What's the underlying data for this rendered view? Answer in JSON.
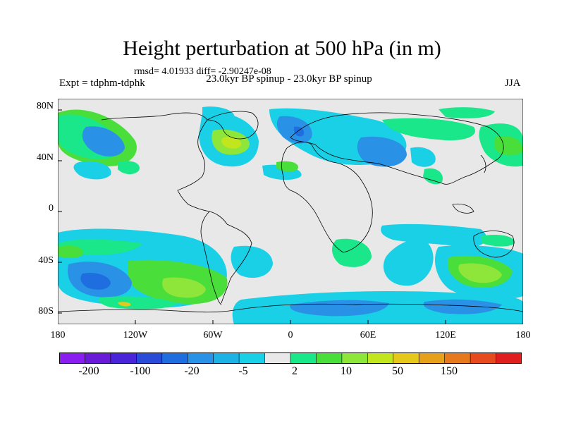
{
  "title": "Height perturbation at 500 hPa (in m)",
  "stats": "rmsd= 4.01933 diff= -2.90247e-08",
  "experiment": "Expt = tdphm-tdphk",
  "subtitle": "23.0kyr BP spinup - 23.0kyr BP spinup",
  "season": "JJA",
  "lat_labels": [
    "80N",
    "40N",
    "0",
    "40S",
    "80S"
  ],
  "lon_labels": [
    "180",
    "120W",
    "60W",
    "0",
    "60E",
    "120E",
    "180"
  ],
  "colorbar": {
    "colors": [
      "#8a1ef0",
      "#6a1bd8",
      "#4a24d8",
      "#2a4ad8",
      "#1e6ee0",
      "#2a92e6",
      "#1cb2e6",
      "#1ad0e6",
      "#e8e8e8",
      "#1ae68a",
      "#4ade3a",
      "#8ee63a",
      "#c2e61e",
      "#e6c81a",
      "#e6a01a",
      "#e6781e",
      "#e64a1e",
      "#e01e1e"
    ],
    "labels": [
      "-200",
      "-100",
      "-20",
      "-5",
      "2",
      "10",
      "50",
      "150"
    ]
  },
  "chart_data": {
    "type": "heatmap",
    "projection": "cylindrical-equidistant",
    "variable": "Height perturbation at 500 hPa",
    "units": "m",
    "xlim": [
      -180,
      180
    ],
    "ylim": [
      -90,
      90
    ],
    "neutral_band": "gray",
    "anomalies": [
      {
        "lon": -150,
        "lat": -55,
        "level": "-20"
      },
      {
        "lon": -75,
        "lat": -62,
        "level": "10"
      },
      {
        "lon": 150,
        "lat": -47,
        "level": "10"
      },
      {
        "lon": -35,
        "lat": 50,
        "level": "10"
      },
      {
        "lon": 0,
        "lat": 38,
        "level": "2"
      },
      {
        "lon": 65,
        "lat": 43,
        "level": "-5"
      },
      {
        "lon": 20,
        "lat": 55,
        "level": "-5"
      },
      {
        "lon": -150,
        "lat": 60,
        "level": "-5"
      },
      {
        "lon": -35,
        "lat": -40,
        "level": "-5"
      },
      {
        "lon": 80,
        "lat": -35,
        "level": "-5"
      },
      {
        "lon": 60,
        "lat": -80,
        "level": "-5"
      },
      {
        "lon": 30,
        "lat": -35,
        "level": "2"
      }
    ]
  }
}
